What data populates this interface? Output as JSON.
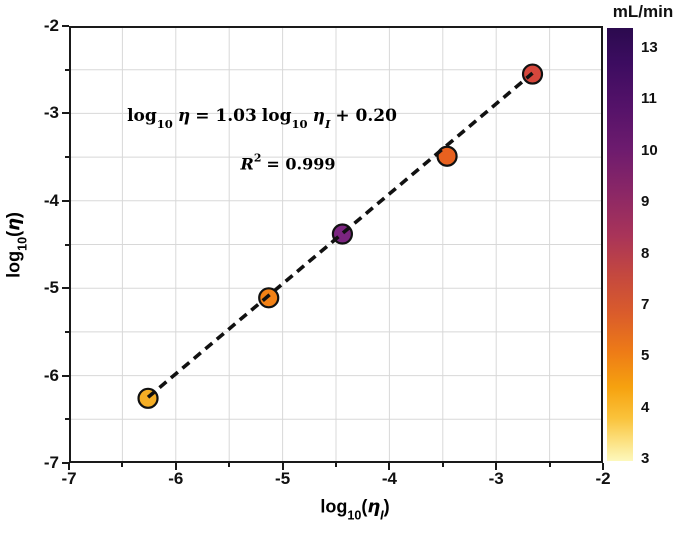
{
  "colorbar": {
    "title": "mL/min",
    "labels": [
      "13",
      "11",
      "10",
      "9",
      "8",
      "7",
      "5",
      "4",
      "3"
    ],
    "gradient_stops": [
      "#2b0a4e 0%",
      "#3c0c60 8%",
      "#541269 18%",
      "#6d1b6e 28%",
      "#8b2766 38%",
      "#a93459 48%",
      "#c4483f 57%",
      "#da5c2b 66%",
      "#ee7c16 75%",
      "#f6a20f 83%",
      "#fac23a 90%",
      "#fce488 96%",
      "#fdf8bd 100%"
    ]
  },
  "axes": {
    "x": {
      "tick_labels": [
        "-7",
        "-6",
        "-5",
        "-4",
        "-3",
        "-2"
      ],
      "label_parts": {
        "fn": "log",
        "sub": "10",
        "open": "(",
        "sym": "η",
        "symsub": "I",
        "close": ")"
      }
    },
    "y": {
      "tick_labels": [
        "-2",
        "-3",
        "-4",
        "-5",
        "-6",
        "-7"
      ],
      "label_parts": {
        "fn": "log",
        "sub": "10",
        "open": "(",
        "sym": "η",
        "close": ")"
      }
    }
  },
  "annotation": {
    "line1": {
      "fn1": "log",
      "sub1": "10",
      "sym1": "η",
      "mid": "= 1.03",
      "fn2": "log",
      "sub2": "10",
      "sym2": "η",
      "symsub": "I",
      "tail": "+ 0.20"
    },
    "line2": {
      "r": "R",
      "sup": "2",
      "rest": "= 0.999"
    }
  },
  "chart_data": {
    "type": "scatter",
    "title": "",
    "xlabel": "log10(eta_I)",
    "ylabel": "log10(eta)",
    "xlim": [
      -7,
      -2
    ],
    "ylim": [
      -7,
      -2
    ],
    "grid": true,
    "grid_step": 0.5,
    "grid_color": "#d8d8d8",
    "spine_color": "#1a1a1a",
    "points": [
      {
        "x": -6.26,
        "y": -6.26,
        "color": "#f5ae25"
      },
      {
        "x": -5.13,
        "y": -5.11,
        "color": "#f28115"
      },
      {
        "x": -4.44,
        "y": -4.38,
        "color": "#7b2580"
      },
      {
        "x": -3.46,
        "y": -3.49,
        "color": "#e8611f"
      },
      {
        "x": -2.66,
        "y": -2.55,
        "color": "#d6473c"
      }
    ],
    "fit": {
      "equation": "log10(eta) = 1.03 log10(eta_I) + 0.20",
      "slope": 1.03,
      "intercept": 0.2,
      "r_squared": 0.999,
      "line_style": "dashed",
      "line_color": "#111111"
    },
    "colorbar": {
      "title": "mL/min",
      "tick_labels": [
        13,
        11,
        10,
        9,
        8,
        7,
        5,
        4,
        3
      ],
      "scale": "ordinal-equal-spacing"
    }
  }
}
